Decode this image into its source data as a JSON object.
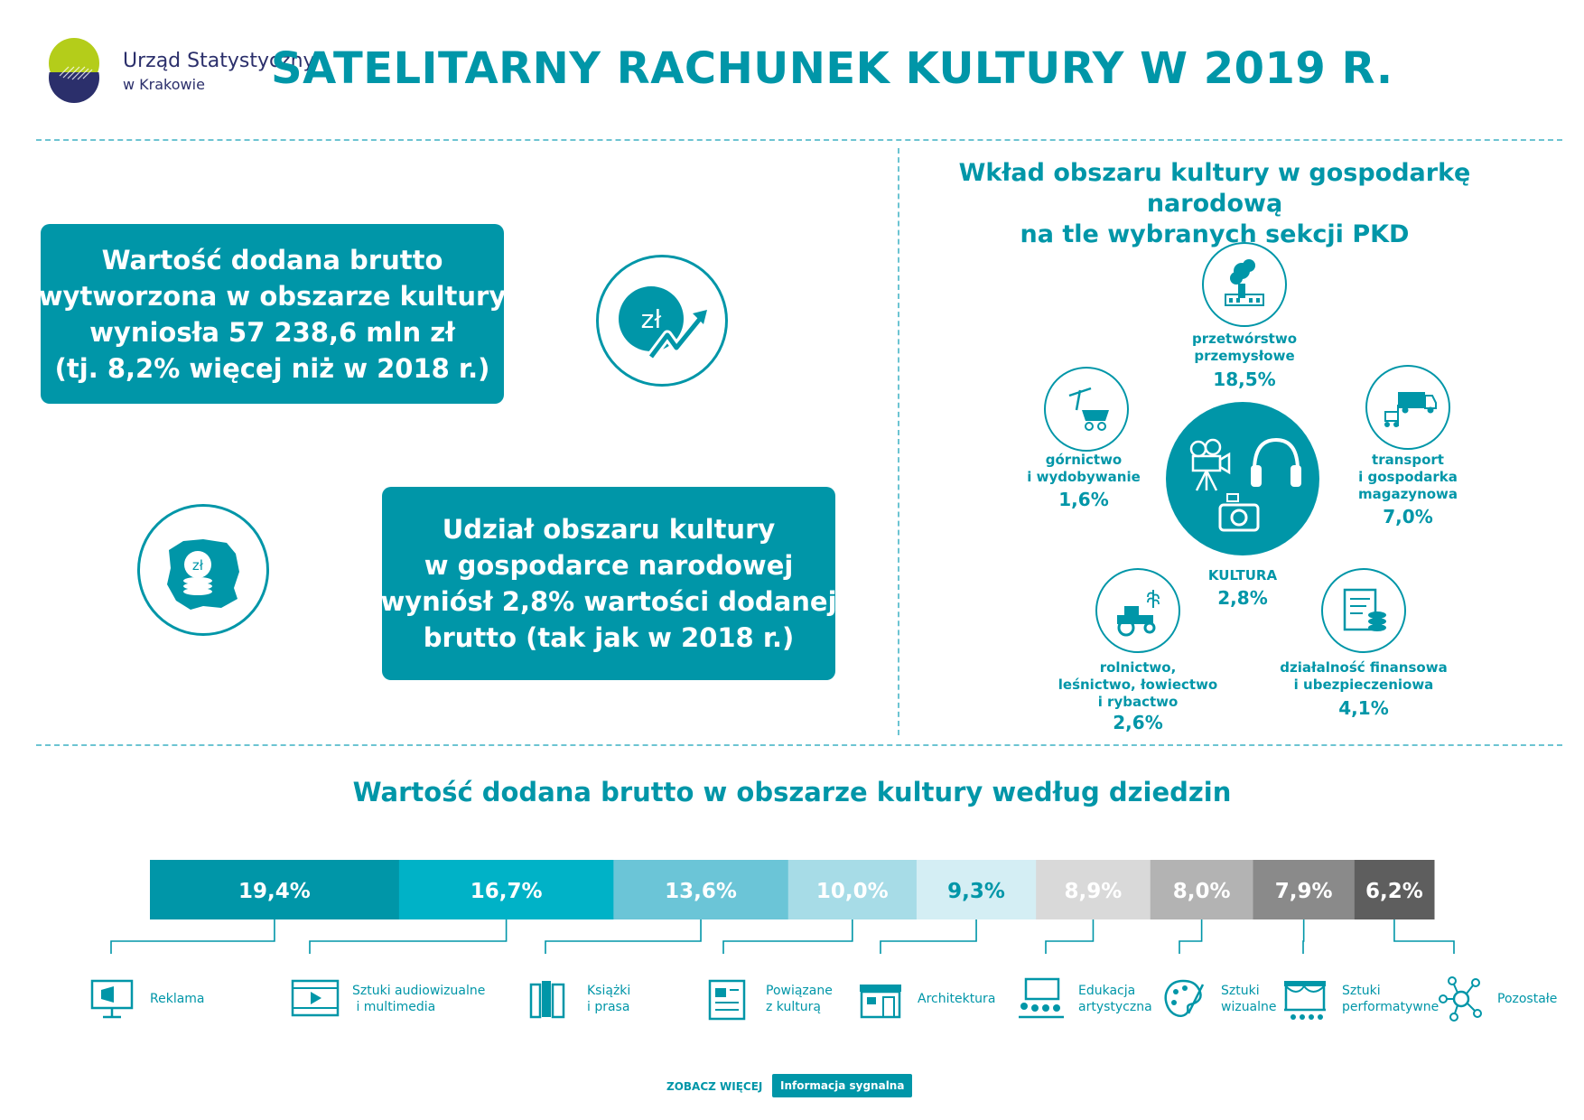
{
  "header": {
    "logo_line1": "Urząd Statystyczny",
    "logo_line2": "w Krakowie",
    "title": "SATELITARNY RACHUNEK KULTURY W 2019 R."
  },
  "box1": {
    "lines": [
      "Wartość dodana brutto",
      "wytworzona w obszarze kultury",
      "wyniosła 57 238,6 mln zł",
      "(tj. 8,2% więcej niż w 2018 r.)"
    ]
  },
  "box2": {
    "lines": [
      "Udział obszaru kultury",
      "w gospodarce narodowej",
      "wyniósł 2,8% wartości dodanej",
      "brutto (tak jak w 2018 r.)"
    ]
  },
  "icons": {
    "coin_symbol": "zł",
    "map_coin_symbol": "zł"
  },
  "right": {
    "title_line1": "Wkład obszaru kultury w gospodarkę narodową",
    "title_line2": "na tle wybranych sekcji PKD"
  },
  "sectors": {
    "przetworstwo": {
      "label": [
        "przetwórstwo",
        "przemysłowe"
      ],
      "value": "18,5%"
    },
    "gornictwo": {
      "label": [
        "górnictwo",
        "i wydobywanie"
      ],
      "value": "1,6%"
    },
    "transport": {
      "label": [
        "transport",
        "i gospodarka",
        "magazynowa"
      ],
      "value": "7,0%"
    },
    "kultura": {
      "label": [
        "KULTURA"
      ],
      "value": "2,8%"
    },
    "rolnictwo": {
      "label": [
        "rolnictwo,",
        "leśnictwo, łowiectwo",
        "i rybactwo"
      ],
      "value": "2,6%"
    },
    "finanse": {
      "label": [
        "działalność finansowa",
        "i ubezpieczeniowa"
      ],
      "value": "4,1%"
    }
  },
  "chart_data": {
    "type": "bar",
    "title": "Wartość dodana brutto w obszarze kultury według dziedzin",
    "stacked": true,
    "orientation": "horizontal",
    "categories": [
      "Reklama",
      "Sztuki audiowizualne i multimedia",
      "Książki i prasa",
      "Powiązane z kulturą",
      "Architektura",
      "Edukacja artystyczna",
      "Sztuki wizualne",
      "Sztuki performatywne",
      "Pozostałe"
    ],
    "values": [
      19.4,
      16.7,
      13.6,
      10.0,
      9.3,
      8.9,
      8.0,
      7.9,
      6.2
    ],
    "value_labels": [
      "19,4%",
      "16,7%",
      "13,6%",
      "10,0%",
      "9,3%",
      "8,9%",
      "8,0%",
      "7,9%",
      "6,2%"
    ],
    "colors": [
      "#0096a8",
      "#00b2c7",
      "#6bc5d7",
      "#a7dce7",
      "#d4eef4",
      "#d9d9d9",
      "#b3b3b3",
      "#8a8a8a",
      "#5e5e5e"
    ],
    "label_colors": [
      "#ffffff",
      "#ffffff",
      "#ffffff",
      "#ffffff",
      "#0096a8",
      "#ffffff",
      "#ffffff",
      "#ffffff",
      "#ffffff"
    ]
  },
  "legend": [
    {
      "lines": [
        "Reklama"
      ],
      "icon": "billboard-icon"
    },
    {
      "lines": [
        "Sztuki audiowizualne",
        " i multimedia"
      ],
      "icon": "film-icon"
    },
    {
      "lines": [
        "Książki",
        "i prasa"
      ],
      "icon": "books-icon"
    },
    {
      "lines": [
        "Powiązane",
        "z kulturą"
      ],
      "icon": "newspaper-icon"
    },
    {
      "lines": [
        "Architektura"
      ],
      "icon": "building-icon"
    },
    {
      "lines": [
        "Edukacja",
        "artystyczna"
      ],
      "icon": "classroom-icon"
    },
    {
      "lines": [
        "Sztuki",
        "wizualne"
      ],
      "icon": "palette-icon"
    },
    {
      "lines": [
        "Sztuki",
        "performatywne"
      ],
      "icon": "stage-icon"
    },
    {
      "lines": [
        "Pozostałe"
      ],
      "icon": "network-icon"
    }
  ],
  "footer": {
    "see_more": "ZOBACZ WIĘCEJ",
    "button": "Informacja sygnalna"
  }
}
